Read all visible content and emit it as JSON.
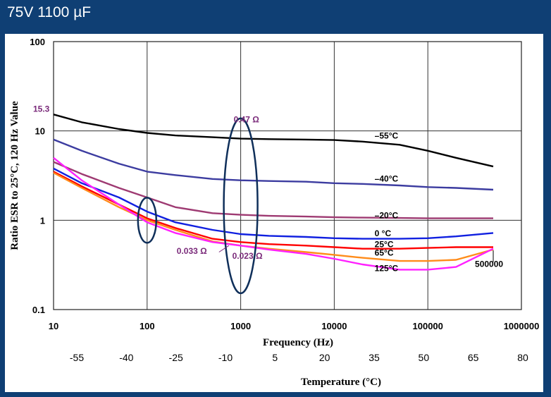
{
  "header": {
    "title": "75V 1100 µF"
  },
  "chart_data": {
    "type": "line",
    "xscale": "log",
    "yscale": "log",
    "xlim": [
      10,
      1000000
    ],
    "ylim": [
      0.1,
      100
    ],
    "xlabel": "Frequency (Hz)",
    "ylabel": "Ratio ESR to 25°C, 120 Hz Value",
    "x_ticks": [
      "10",
      "100",
      "1000",
      "10000",
      "100000",
      "1000000"
    ],
    "y_ticks": [
      "0.1",
      "1",
      "10",
      "100"
    ],
    "grid": true,
    "series": [
      {
        "name": "–55°C",
        "color": "#000000",
        "x": [
          10,
          20,
          50,
          100,
          200,
          500,
          1000,
          2000,
          5000,
          10000,
          20000,
          50000,
          100000,
          200000,
          500000
        ],
        "y": [
          15.3,
          12.5,
          10.5,
          9.5,
          8.9,
          8.5,
          8.2,
          8.1,
          8.0,
          7.9,
          7.6,
          7.0,
          6.0,
          5.0,
          4.0
        ]
      },
      {
        "name": "–40°C",
        "color": "#3c3ca0",
        "x": [
          10,
          20,
          50,
          100,
          200,
          500,
          1000,
          2000,
          5000,
          10000,
          20000,
          50000,
          100000,
          200000,
          500000
        ],
        "y": [
          8.0,
          6.0,
          4.3,
          3.5,
          3.2,
          2.9,
          2.8,
          2.75,
          2.7,
          2.6,
          2.55,
          2.45,
          2.35,
          2.3,
          2.2
        ]
      },
      {
        "name": "–20°C",
        "color": "#9e3a72",
        "x": [
          10,
          20,
          50,
          100,
          200,
          500,
          1000,
          2000,
          5000,
          10000,
          20000,
          50000,
          100000,
          200000,
          500000
        ],
        "y": [
          4.5,
          3.3,
          2.3,
          1.8,
          1.4,
          1.2,
          1.15,
          1.12,
          1.1,
          1.08,
          1.07,
          1.06,
          1.05,
          1.05,
          1.05
        ]
      },
      {
        "name": "0 °C",
        "color": "#1020e0",
        "x": [
          10,
          20,
          50,
          100,
          200,
          500,
          1000,
          2000,
          5000,
          10000,
          20000,
          50000,
          100000,
          200000,
          500000
        ],
        "y": [
          3.8,
          2.6,
          1.8,
          1.25,
          0.95,
          0.78,
          0.7,
          0.67,
          0.65,
          0.63,
          0.62,
          0.62,
          0.63,
          0.66,
          0.72
        ]
      },
      {
        "name": "25°C",
        "color": "#ff0000",
        "x": [
          10,
          20,
          50,
          100,
          200,
          500,
          1000,
          2000,
          5000,
          10000,
          20000,
          50000,
          100000,
          200000,
          500000
        ],
        "y": [
          3.5,
          2.4,
          1.5,
          1.05,
          0.82,
          0.62,
          0.57,
          0.54,
          0.52,
          0.5,
          0.48,
          0.48,
          0.49,
          0.5,
          0.5
        ]
      },
      {
        "name": "65°C",
        "color": "#ff8c1a",
        "x": [
          10,
          20,
          50,
          100,
          200,
          500,
          1000,
          2000,
          5000,
          10000,
          20000,
          50000,
          100000,
          200000,
          500000
        ],
        "y": [
          3.4,
          2.3,
          1.4,
          1.0,
          0.78,
          0.58,
          0.52,
          0.48,
          0.44,
          0.41,
          0.38,
          0.35,
          0.35,
          0.36,
          0.47
        ]
      },
      {
        "name": "125°C",
        "color": "#ff20ff",
        "x": [
          10,
          20,
          50,
          100,
          200,
          500,
          1000,
          2000,
          5000,
          10000,
          20000,
          50000,
          100000,
          200000,
          500000
        ],
        "y": [
          5.0,
          2.8,
          1.5,
          0.95,
          0.72,
          0.57,
          0.52,
          0.47,
          0.42,
          0.37,
          0.32,
          0.28,
          0.28,
          0.3,
          0.48
        ]
      }
    ],
    "annotations": [
      {
        "text": "15.3"
      },
      {
        "text": "0.47 Ω"
      },
      {
        "text": "0.033 Ω"
      },
      {
        "text": "0.023 Ω"
      },
      {
        "text": "500000"
      }
    ],
    "temperature_axis": {
      "title": "Temperature (°C)",
      "ticks": [
        "-55",
        "-40",
        "-25",
        "-10",
        "5",
        "20",
        "35",
        "50",
        "65",
        "80"
      ]
    }
  }
}
